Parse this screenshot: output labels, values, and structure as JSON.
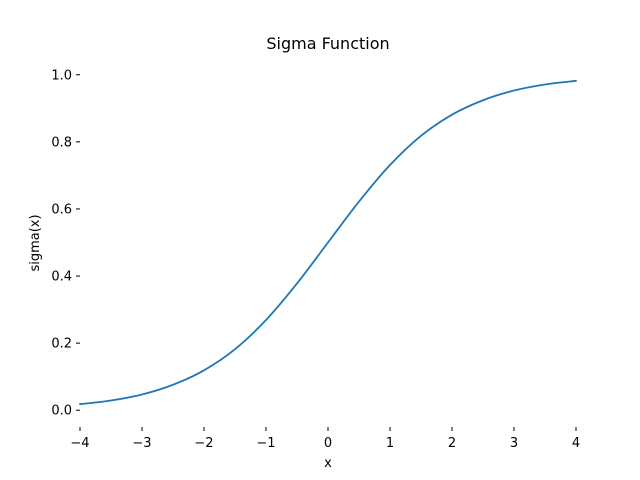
{
  "chart_data": {
    "type": "line",
    "title": "Sigma Function",
    "xlabel": "x",
    "ylabel": "sigma(x)",
    "xlim": [
      -4,
      4
    ],
    "ylim": [
      -0.05,
      1.05
    ],
    "grid": false,
    "x_ticks": [
      -4,
      -3,
      -2,
      -1,
      0,
      1,
      2,
      3,
      4
    ],
    "x_tick_labels": [
      "−4",
      "−3",
      "−2",
      "−1",
      "0",
      "1",
      "2",
      "3",
      "4"
    ],
    "y_ticks": [
      0.0,
      0.2,
      0.4,
      0.6,
      0.8,
      1.0
    ],
    "y_tick_labels": [
      "0.0",
      "0.2",
      "0.4",
      "0.6",
      "0.8",
      "1.0"
    ],
    "series": [
      {
        "color": "#1f77b4",
        "x": [
          -4.0,
          -3.5,
          -3.0,
          -2.5,
          -2.0,
          -1.5,
          -1.0,
          -0.5,
          0.0,
          0.5,
          1.0,
          1.5,
          2.0,
          2.5,
          3.0,
          3.5,
          4.0
        ],
        "y": [
          0.018,
          0.029,
          0.047,
          0.076,
          0.119,
          0.182,
          0.269,
          0.378,
          0.5,
          0.622,
          0.731,
          0.818,
          0.881,
          0.924,
          0.953,
          0.971,
          0.982
        ]
      }
    ]
  }
}
